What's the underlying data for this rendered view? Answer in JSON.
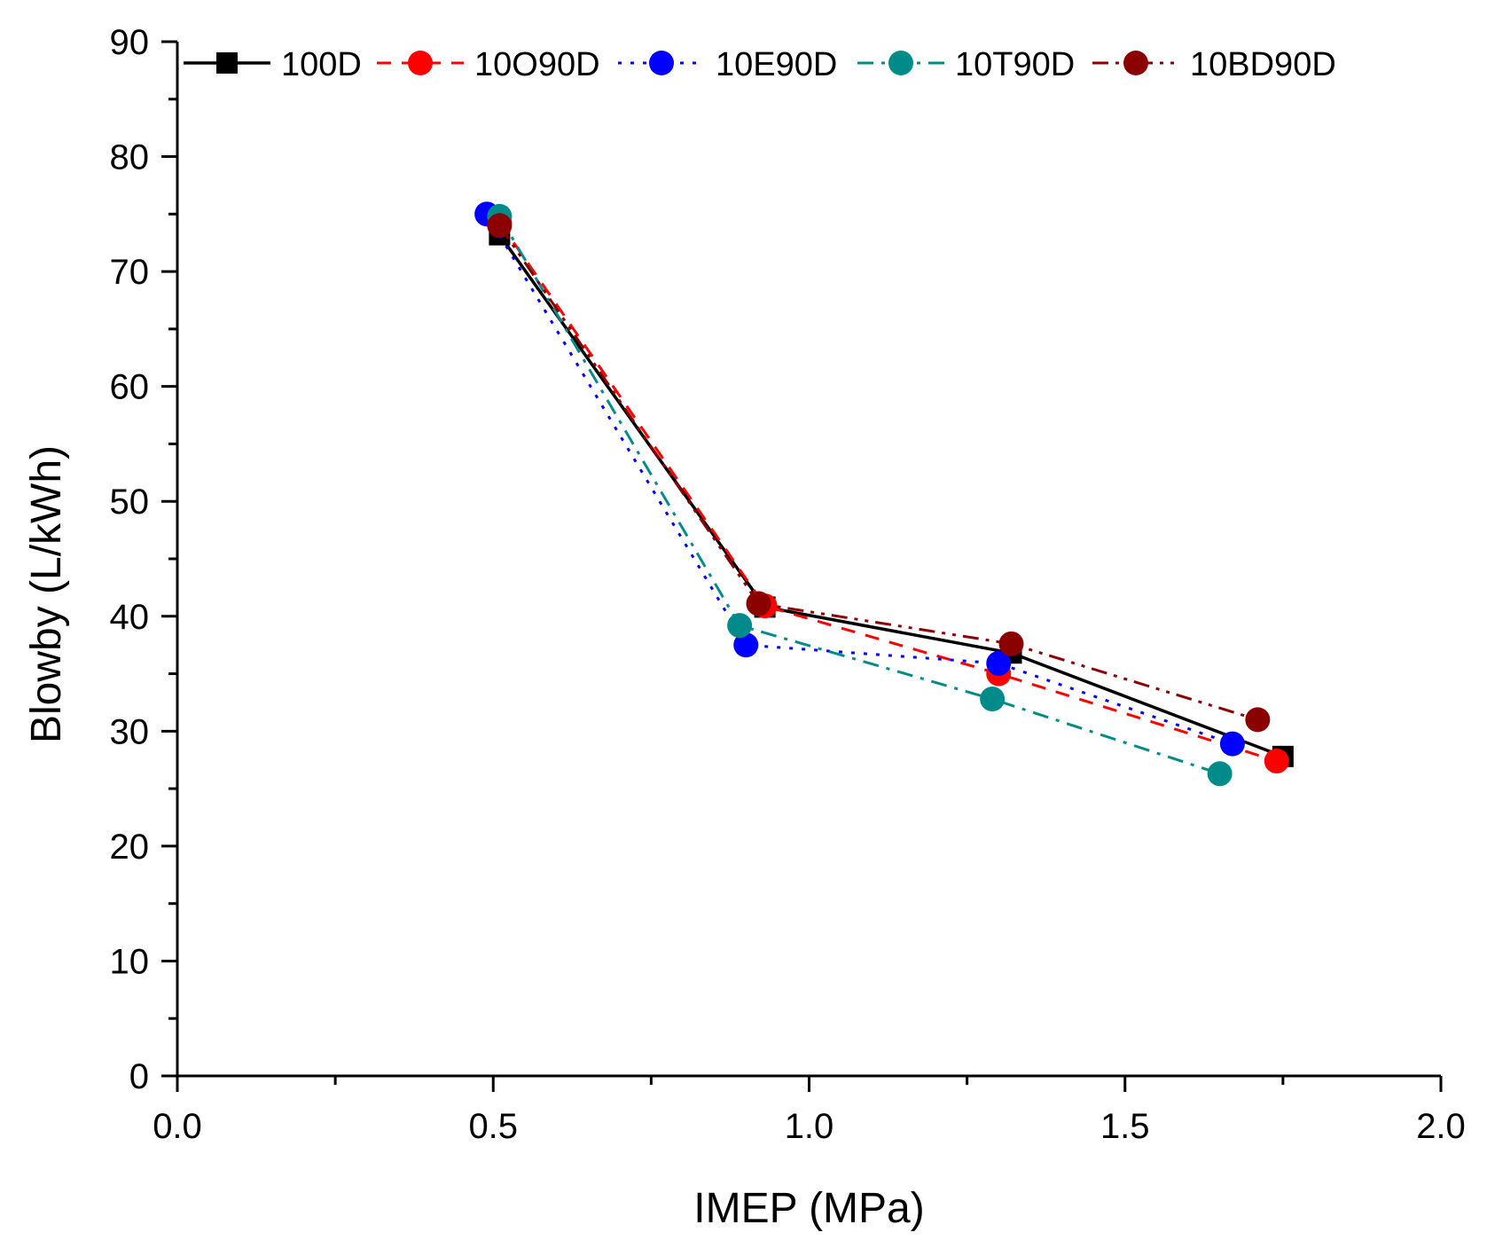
{
  "chart_data": {
    "type": "line",
    "title": "",
    "xlabel": "IMEP (MPa)",
    "ylabel": "Blowby (L/kWh)",
    "xlim": [
      0.0,
      2.0
    ],
    "ylim": [
      0,
      90
    ],
    "xticks": [
      0.0,
      0.5,
      1.0,
      1.5,
      2.0
    ],
    "xtick_labels": [
      "0.0",
      "0.5",
      "1.0",
      "1.5",
      "2.0"
    ],
    "yticks": [
      0,
      10,
      20,
      30,
      40,
      50,
      60,
      70,
      80,
      90
    ],
    "ytick_labels": [
      "0",
      "10",
      "20",
      "30",
      "40",
      "50",
      "60",
      "70",
      "80",
      "90"
    ],
    "grid": false,
    "legend_position": "top",
    "series": [
      {
        "name": "100D",
        "color": "#000000",
        "marker": "square",
        "dash": "solid",
        "x": [
          0.51,
          0.93,
          1.32,
          1.75
        ],
        "y": [
          73.2,
          40.8,
          36.8,
          27.8
        ]
      },
      {
        "name": "10O90D",
        "color": "#ff0000",
        "marker": "circle",
        "dash": "dash",
        "x": [
          0.51,
          0.93,
          1.3,
          1.74
        ],
        "y": [
          74.3,
          40.9,
          35.0,
          27.4
        ]
      },
      {
        "name": "10E90D",
        "color": "#0000ff",
        "marker": "circle",
        "dash": "dot",
        "x": [
          0.49,
          0.9,
          1.3,
          1.67
        ],
        "y": [
          75.0,
          37.5,
          35.9,
          28.9
        ]
      },
      {
        "name": "10T90D",
        "color": "#008b8b",
        "marker": "circle",
        "dash": "dashdot",
        "x": [
          0.51,
          0.89,
          1.29,
          1.65
        ],
        "y": [
          74.8,
          39.2,
          32.8,
          26.3
        ]
      },
      {
        "name": "10BD90D",
        "color": "#8b0000",
        "marker": "circle",
        "dash": "dashdotdot",
        "x": [
          0.51,
          0.92,
          1.32,
          1.71
        ],
        "y": [
          74.0,
          41.1,
          37.6,
          31.0
        ]
      }
    ]
  }
}
